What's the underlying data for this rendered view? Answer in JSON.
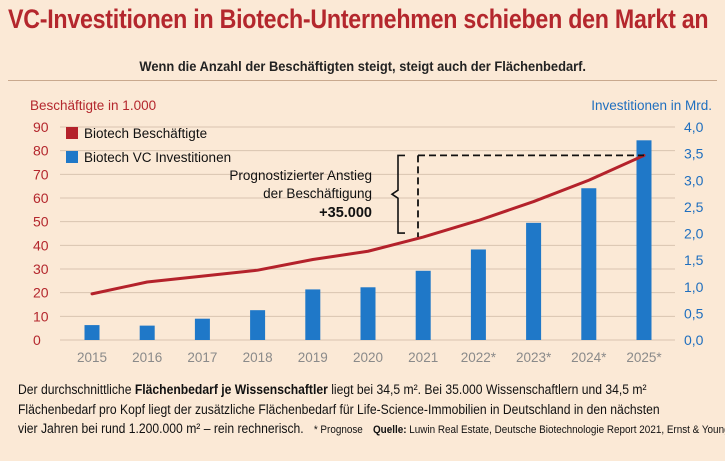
{
  "header": {
    "title": "VC-Investitionen in Biotech-Unternehmen schieben den Markt an",
    "subtitle": "Wenn die Anzahl der Beschäftigten steigt, steigt auch der Flächenbedarf."
  },
  "colors": {
    "line": "#b4222b",
    "bar": "#1f78c8",
    "left_axis": "#b4272d",
    "right_axis": "#1f6fbf",
    "grid": "#d9c4b0"
  },
  "chart_data": {
    "type": "bar+line",
    "categories": [
      "2015",
      "2016",
      "2017",
      "2018",
      "2019",
      "2020",
      "2021",
      "2022*",
      "2023*",
      "2024*",
      "2025*"
    ],
    "left_axis": {
      "label": "Beschäftigte in 1.000",
      "ticks": [
        "90",
        "80",
        "70",
        "60",
        "50",
        "40",
        "30",
        "20",
        "10",
        "0"
      ],
      "ylim": [
        0,
        90
      ]
    },
    "right_axis": {
      "label": "Investitionen in Mrd.",
      "ticks": [
        "4,0",
        "3,5",
        "3,0",
        "2,5",
        "2,0",
        "1,5",
        "1,0",
        "0,5",
        "0,0"
      ],
      "ylim": [
        0,
        4
      ]
    },
    "series": [
      {
        "name": "Biotech Beschäftigte",
        "type": "line",
        "axis": "left",
        "values": [
          19.5,
          24.5,
          27,
          29.5,
          34,
          37.5,
          43.5,
          50.5,
          58.5,
          67.5,
          78
        ]
      },
      {
        "name": "Biotech VC Investitionen",
        "type": "bar",
        "axis": "right",
        "values": [
          0.28,
          0.27,
          0.4,
          0.56,
          0.95,
          0.99,
          1.3,
          1.7,
          2.2,
          2.85,
          3.75
        ]
      }
    ],
    "annotation": {
      "line1": "Prognostizierter Anstieg",
      "line2": "der Beschäftigung",
      "value": "+35.000"
    },
    "grid": true,
    "legend": "top-left"
  },
  "footer": {
    "l1_a": "Der durchschnittliche ",
    "l1_b": "Flächenbedarf je Wissenschaftler",
    "l1_c": " liegt bei 34,5 m². Bei 35.000 Wissenschaftlern und 34,5 m²",
    "l2": "Flächenbedarf pro Kopf liegt der zusätzliche Flächenbedarf für Life-Science-Immobilien in Deutschland in den nächsten",
    "l3": "vier Jahren bei rund 1.200.000 m² – rein rechnerisch.",
    "note": "* Prognose",
    "source_label": "Quelle:",
    "source": " Luwin Real Estate, Deutsche Biotechnologie Report 2021, Ernst & Young"
  }
}
